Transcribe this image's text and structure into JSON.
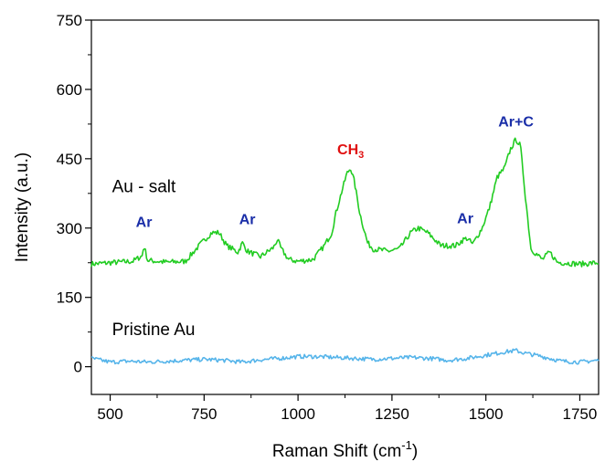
{
  "chart_data": {
    "type": "line",
    "title": "",
    "xlabel": "Raman Shift (cm",
    "xlabel_superscript": "-1",
    "xlabel_suffix": ")",
    "ylabel": "Intensity (a.u.)",
    "xlim": [
      450,
      1800
    ],
    "ylim": [
      -60,
      750
    ],
    "xticks": [
      500,
      750,
      1000,
      1250,
      1500,
      1750
    ],
    "yticks": [
      0,
      150,
      300,
      450,
      600,
      750
    ],
    "grid": false,
    "series": [
      {
        "name": "Au - salt",
        "color": "#22cc22",
        "x": [
          450,
          500,
          560,
          585,
          590,
          600,
          650,
          700,
          740,
          770,
          790,
          810,
          840,
          852,
          865,
          900,
          935,
          945,
          955,
          975,
          1000,
          1040,
          1070,
          1090,
          1100,
          1115,
          1130,
          1140,
          1150,
          1165,
          1185,
          1200,
          1240,
          1270,
          1300,
          1320,
          1345,
          1380,
          1420,
          1440,
          1450,
          1465,
          1490,
          1510,
          1530,
          1550,
          1565,
          1580,
          1592,
          1605,
          1620,
          1650,
          1670,
          1690,
          1750,
          1800
        ],
        "y": [
          222,
          225,
          228,
          240,
          262,
          230,
          226,
          228,
          265,
          290,
          290,
          262,
          248,
          268,
          250,
          238,
          258,
          275,
          255,
          232,
          228,
          232,
          262,
          290,
          330,
          375,
          418,
          430,
          400,
          330,
          268,
          255,
          250,
          255,
          290,
          300,
          290,
          262,
          262,
          275,
          278,
          265,
          300,
          345,
          410,
          430,
          470,
          492,
          478,
          370,
          255,
          232,
          248,
          226,
          222,
          225
        ]
      },
      {
        "name": "Pristine Au",
        "color": "#55b4ea",
        "x": [
          450,
          500,
          550,
          600,
          650,
          700,
          750,
          800,
          850,
          900,
          950,
          1000,
          1050,
          1100,
          1150,
          1200,
          1250,
          1300,
          1350,
          1400,
          1450,
          1500,
          1550,
          1580,
          1600,
          1650,
          1700,
          1750,
          1800
        ],
        "y": [
          18,
          10,
          12,
          10,
          12,
          14,
          16,
          14,
          10,
          15,
          18,
          22,
          22,
          20,
          18,
          16,
          18,
          20,
          18,
          14,
          18,
          25,
          32,
          35,
          30,
          22,
          12,
          10,
          14
        ]
      }
    ],
    "series_labels": [
      {
        "text": "Au - salt",
        "x": 505,
        "y": 378
      },
      {
        "text": "Pristine Au",
        "x": 505,
        "y": 68
      }
    ],
    "annotations": [
      {
        "text": "Ar",
        "sub": "",
        "color": "#1a2ea8",
        "x": 590,
        "y": 303
      },
      {
        "text": "Ar",
        "sub": "",
        "color": "#1a2ea8",
        "x": 865,
        "y": 308
      },
      {
        "text": "CH",
        "sub": "3",
        "color": "#e01010",
        "x": 1140,
        "y": 460
      },
      {
        "text": "Ar",
        "sub": "",
        "color": "#1a2ea8",
        "x": 1445,
        "y": 310
      },
      {
        "text": "Ar+C",
        "sub": "",
        "color": "#1a2ea8",
        "x": 1580,
        "y": 520
      }
    ]
  }
}
